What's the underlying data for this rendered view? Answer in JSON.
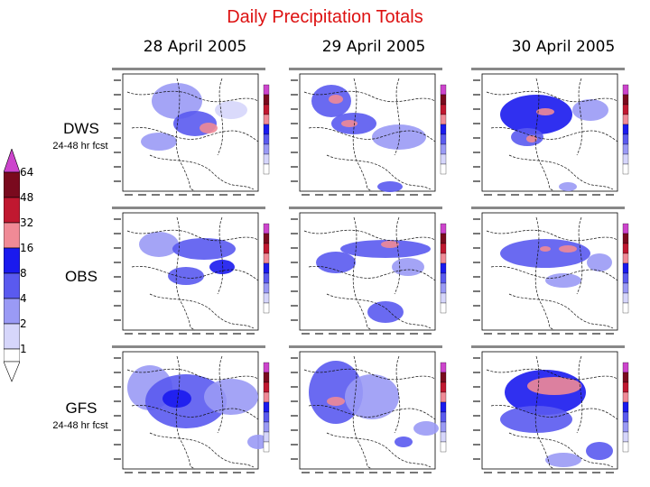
{
  "title": "Daily Precipitation Totals",
  "columns": [
    "28 April 2005",
    "29 April 2005",
    "30 April 2005"
  ],
  "rows": [
    {
      "label": "DWS",
      "sub": "24-48 hr fcst"
    },
    {
      "label": "OBS",
      "sub": ""
    },
    {
      "label": "GFS",
      "sub": "24-48 hr fcst"
    }
  ],
  "legend": {
    "levels": [
      "64",
      "48",
      "32",
      "16",
      "8",
      "4",
      "2",
      "1"
    ],
    "colors": [
      "#cc44cc",
      "#7a0a1e",
      "#c01830",
      "#f08a96",
      "#1a1aee",
      "#5a5aef",
      "#9a9af5",
      "#d6d6fb"
    ]
  }
}
